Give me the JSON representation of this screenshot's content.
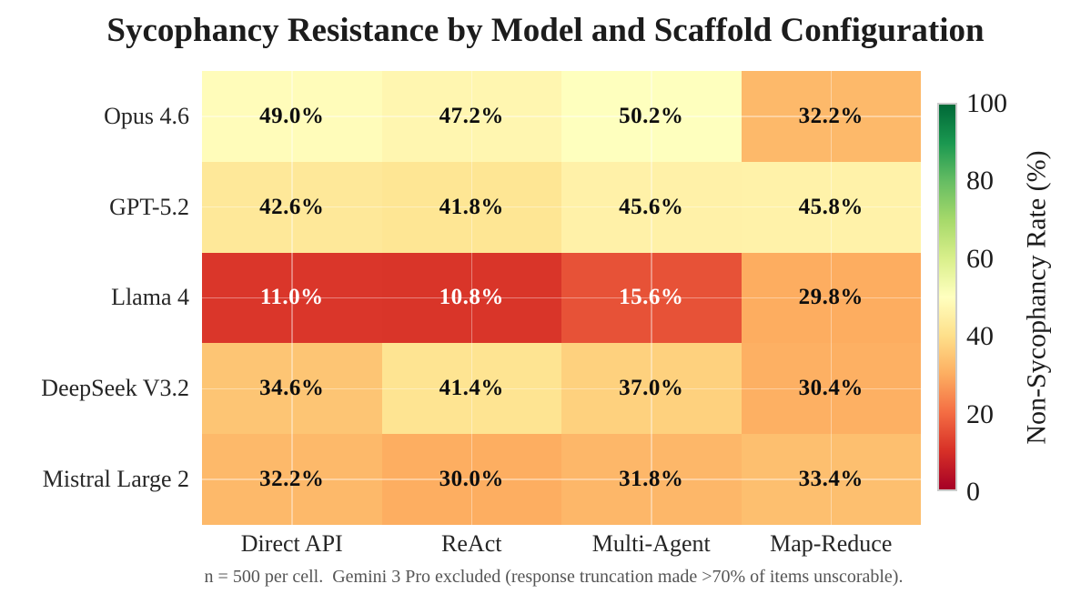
{
  "title": "Sycophancy Resistance by Model and Scaffold Configuration",
  "footnote": "n = 500 per cell.  Gemini 3 Pro excluded (response truncation made >70% of items unscorable).",
  "chart_data": {
    "type": "heatmap",
    "title": "Sycophancy Resistance by Model and Scaffold Configuration",
    "rows": [
      "Opus 4.6",
      "GPT-5.2",
      "Llama 4",
      "DeepSeek V3.2",
      "Mistral Large 2"
    ],
    "columns": [
      "Direct API",
      "ReAct",
      "Multi-Agent",
      "Map-Reduce"
    ],
    "values": [
      [
        49.0,
        47.2,
        50.2,
        32.2
      ],
      [
        42.6,
        41.8,
        45.6,
        45.8
      ],
      [
        11.0,
        10.8,
        15.6,
        29.8
      ],
      [
        34.6,
        41.4,
        37.0,
        30.4
      ],
      [
        32.2,
        30.0,
        31.8,
        33.4
      ]
    ],
    "value_suffix": "%",
    "value_decimals": 1,
    "grid": true,
    "colorbar": {
      "label": "Non-Sycophancy Rate (%)",
      "ticks": [
        0,
        20,
        40,
        60,
        80,
        100
      ],
      "min": 0,
      "max": 100,
      "colormap": "RdYlGn",
      "colormap_stops": [
        "#a50026",
        "#d73027",
        "#f46d43",
        "#fdae61",
        "#fee08b",
        "#ffffbf",
        "#d9ef8b",
        "#a6d96a",
        "#66bd63",
        "#1a9850",
        "#006837"
      ]
    },
    "text_colors": {
      "light": "#ffffff",
      "dark": "#0d0d0d",
      "light_text_below_value": 25
    }
  }
}
